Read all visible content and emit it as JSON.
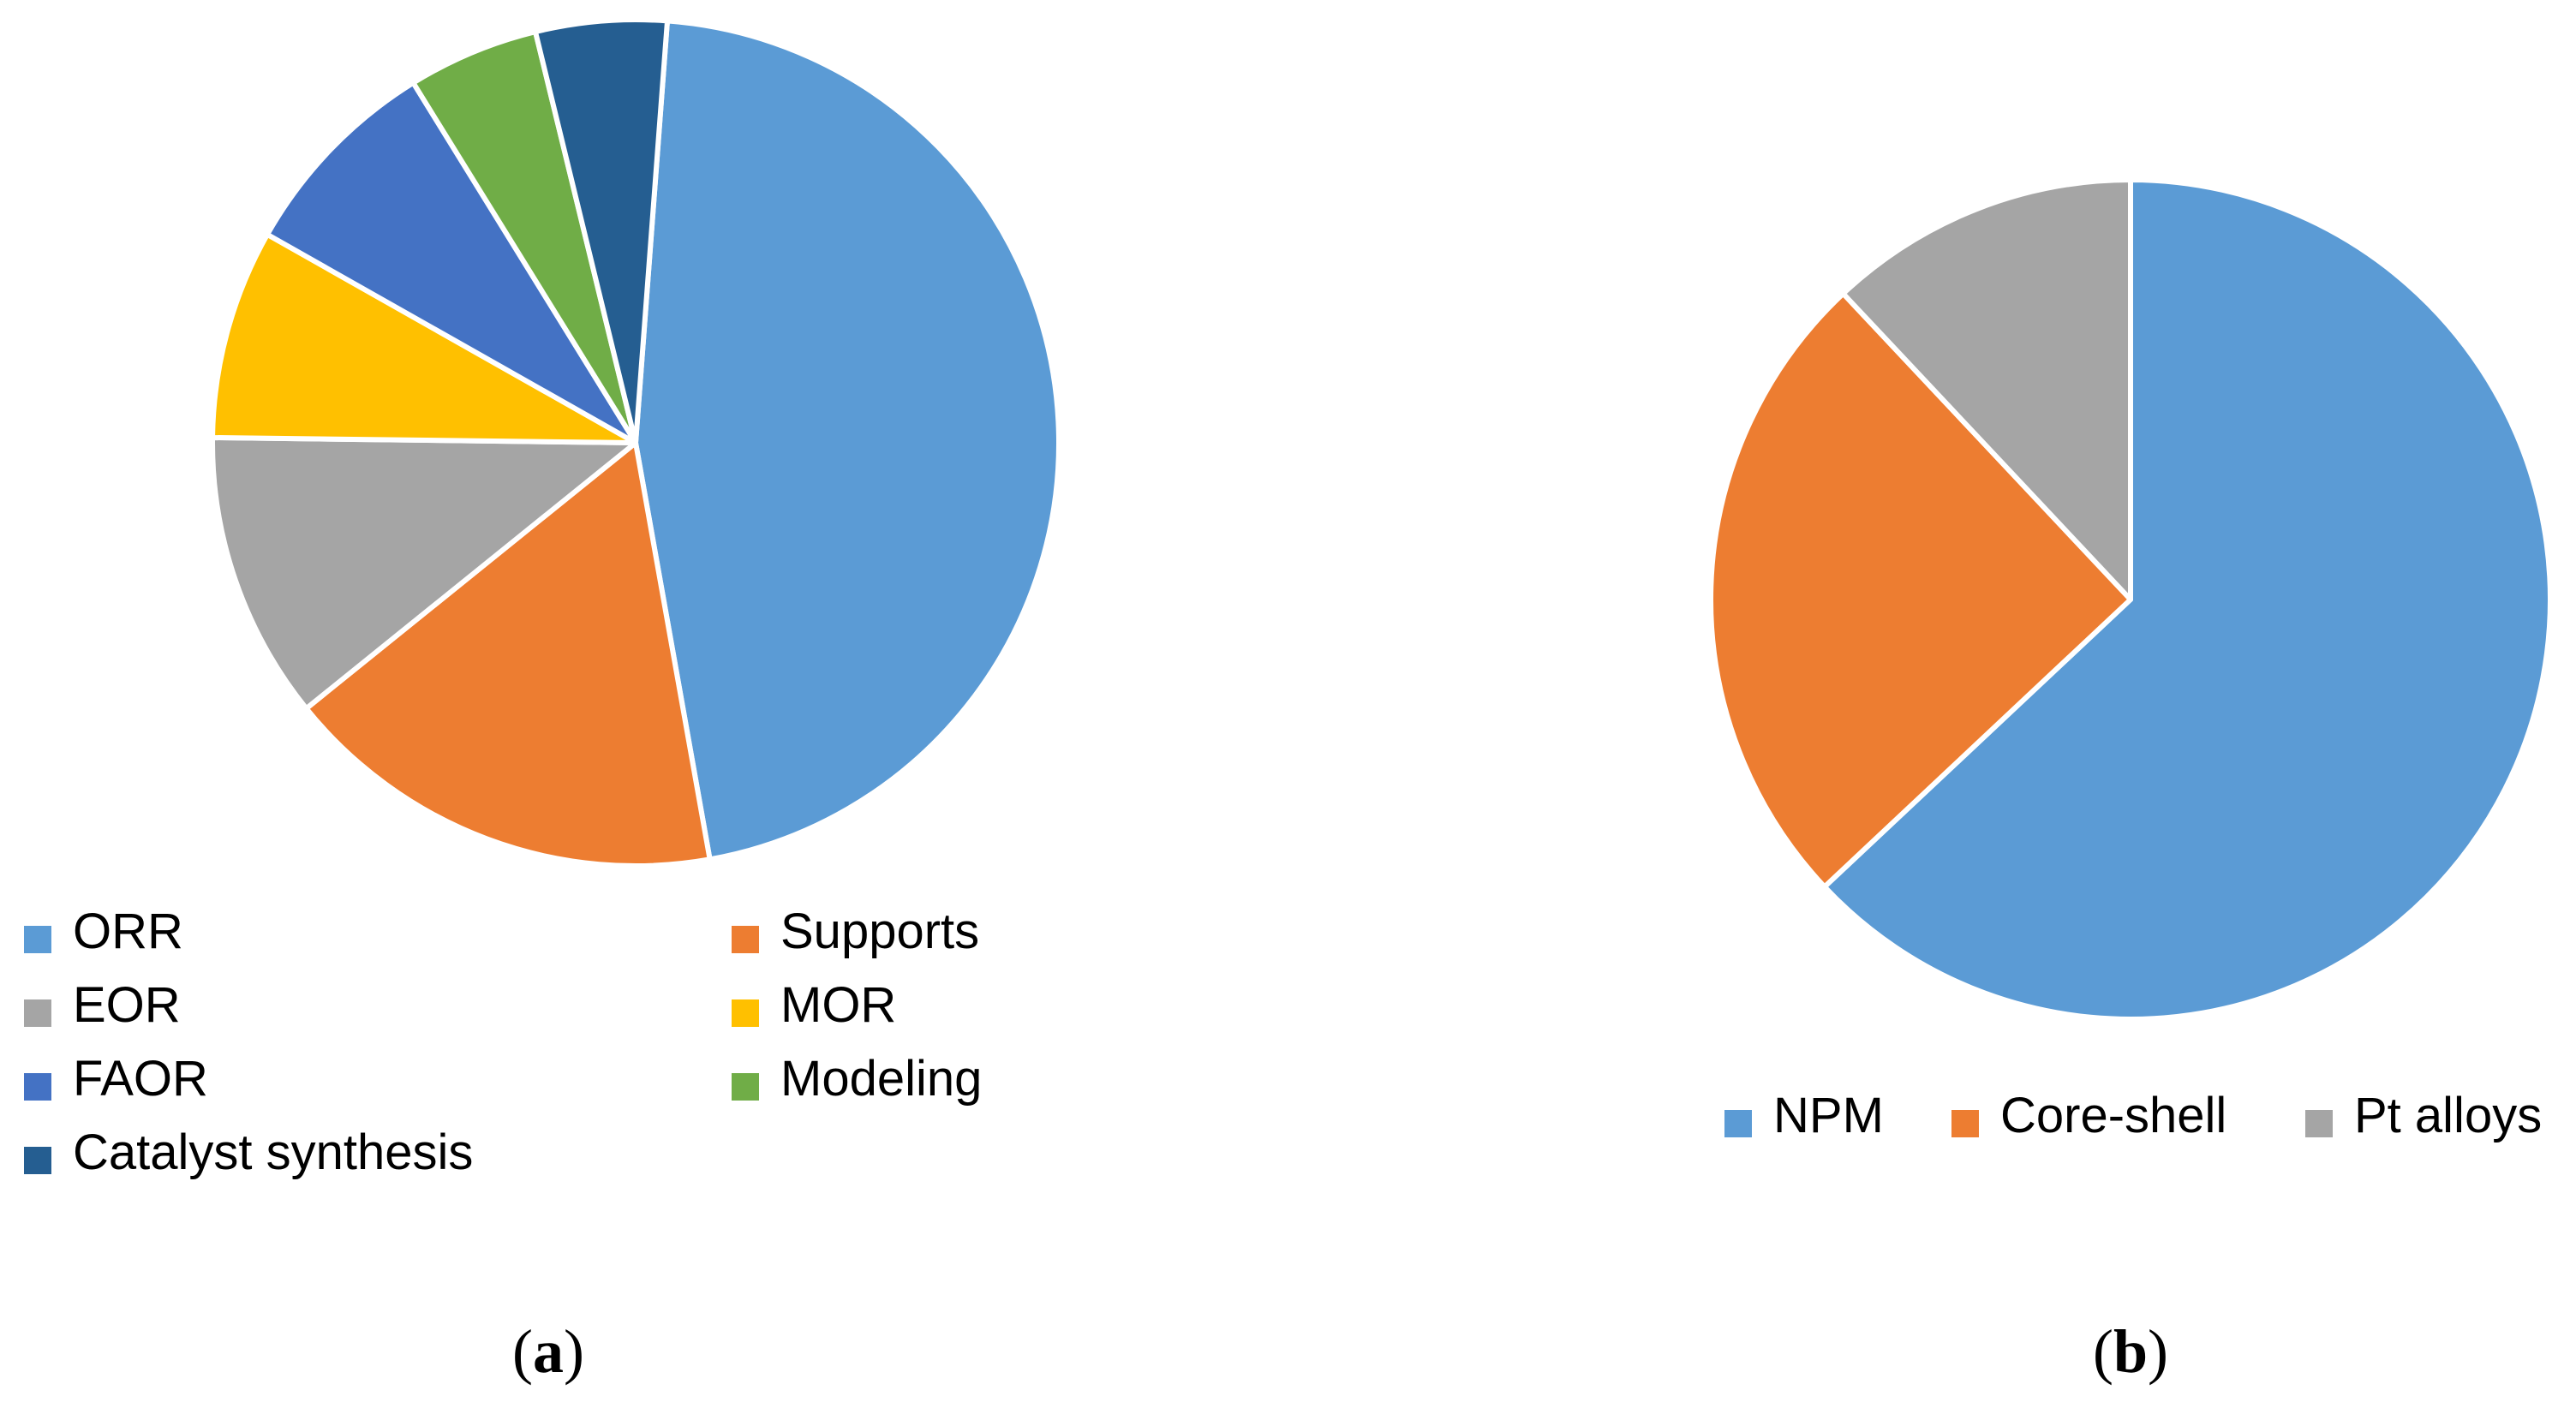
{
  "chart_data": [
    {
      "type": "pie",
      "panel_label": "(a)",
      "panel_letter": "a",
      "slices": [
        {
          "label": "ORR",
          "value": 46,
          "color": "#5b9bd5"
        },
        {
          "label": "Supports",
          "value": 17,
          "color": "#ed7d31"
        },
        {
          "label": "EOR",
          "value": 11,
          "color": "#a5a5a5"
        },
        {
          "label": "MOR",
          "value": 8,
          "color": "#ffc000"
        },
        {
          "label": "FAOR",
          "value": 8,
          "color": "#4472c4"
        },
        {
          "label": "Modeling",
          "value": 5,
          "color": "#70ad47"
        },
        {
          "label": "Catalyst synthesis",
          "value": 5,
          "color": "#255e91"
        }
      ],
      "legend": {
        "placement": "bottom",
        "columns": 2
      }
    },
    {
      "type": "pie",
      "panel_label": "(b)",
      "panel_letter": "b",
      "slices": [
        {
          "label": "NPM",
          "value": 63,
          "color": "#5b9bd5"
        },
        {
          "label": "Core-shell",
          "value": 25,
          "color": "#ed7d31"
        },
        {
          "label": "Pt alloys",
          "value": 12,
          "color": "#a5a5a5"
        }
      ],
      "legend": {
        "placement": "bottom",
        "columns": 3
      }
    }
  ]
}
